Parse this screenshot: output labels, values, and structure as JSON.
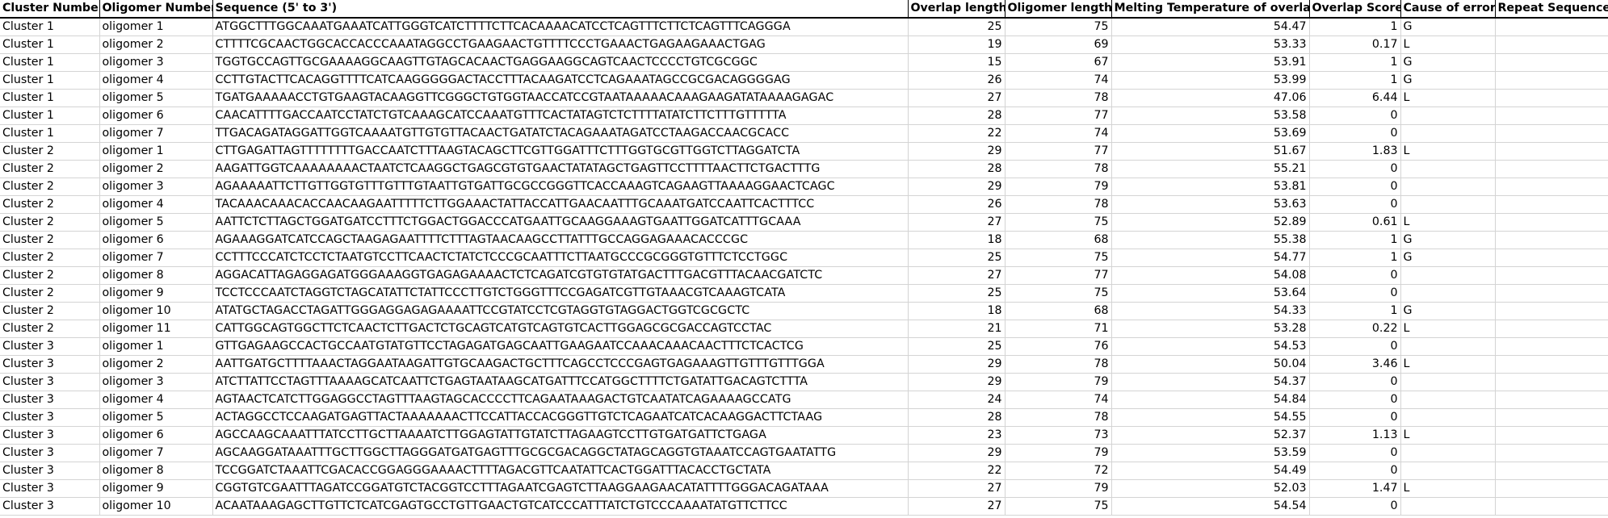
{
  "headers": [
    "Cluster Number",
    "Oligomer Number",
    "Sequence (5' to 3')",
    "Overlap length",
    "Oligomer length",
    "Melting Temperature of overlap",
    "Overlap Score",
    "Cause of errors",
    "Repeat Sequences"
  ],
  "rows": [
    [
      "Cluster 1",
      "oligomer 1",
      "ATGGCTTTGGCAAATGAAATCATTGGGTCATCTTTTCTTCACAAAACATCCTCAGTTTCTTCTCAGTTTCAGGGA",
      "25",
      "75",
      "54.47",
      "1",
      "G",
      ""
    ],
    [
      "Cluster 1",
      "oligomer 2",
      "CTTTTCGCAACTGGCACCACCCAAATAGGCCTGAAGAACTGTTTTCCCTGAAACTGAGAAGAAACTGAG",
      "19",
      "69",
      "53.33",
      "0.17",
      "L",
      ""
    ],
    [
      "Cluster 1",
      "oligomer 3",
      "TGGTGCCAGTTGCGAAAAGGCAAGTTGTAGCACAACTGAGGAAGGCAGTCAACTCCCCTGTCGCGGC",
      "15",
      "67",
      "53.91",
      "1",
      "G",
      ""
    ],
    [
      "Cluster 1",
      "oligomer 4",
      "CCTTGTACTTCACAGGTTTTCATCAAGGGGGACTACCTTTACAAGATCCTCAGAAATAGCCGCGACAGGGGAG",
      "26",
      "74",
      "53.99",
      "1",
      "G",
      ""
    ],
    [
      "Cluster 1",
      "oligomer 5",
      "TGATGAAAAACCTGTGAAGTACAAGGTTCGGGCTGTGGTAACCATCCGTAATAAAAACAAAGAAGATATAAAAGAGAC",
      "27",
      "78",
      "47.06",
      "6.44",
      "L",
      ""
    ],
    [
      "Cluster 1",
      "oligomer 6",
      "CAACATTTTGACCAATCCTATCTGTCAAAGCATCCAAATGTTTCACTATAGTCTCTTTTATATCTTCTTTGTTTTTA",
      "28",
      "77",
      "53.58",
      "0",
      "",
      ""
    ],
    [
      "Cluster 1",
      "oligomer 7",
      "TTGACAGATAGGATTGGTCAAAATGTTGTGTTACAACTGATATCTACAGAAATAGATCCTAAGACCAACGCACC",
      "22",
      "74",
      "53.69",
      "0",
      "",
      ""
    ],
    [
      "Cluster 2",
      "oligomer 1",
      "CTTGAGATTAGTTTTTTTTGACCAATCTTTAAGTACAGCTTCGTTGGATTTCTTTGGTGCGTTGGTCTTAGGATCTA",
      "29",
      "77",
      "51.67",
      "1.83",
      "L",
      ""
    ],
    [
      "Cluster 2",
      "oligomer 2",
      "AAGATTGGTCAAAAAAAACTAATCTCAAGGCTGAGCGTGTGAACTATATAGCTGAGTTCCTTTTAACTTCTGACTTTG",
      "28",
      "78",
      "55.21",
      "0",
      "",
      ""
    ],
    [
      "Cluster 2",
      "oligomer 3",
      "AGAAAAATTCTTGTTGGTGTTTGTTTGTAATTGTGATTGCGCCGGGTTCACCAAAGTCAGAAGTTAAAAGGAACTCAGC",
      "29",
      "79",
      "53.81",
      "0",
      "",
      ""
    ],
    [
      "Cluster 2",
      "oligomer 4",
      "TACAAACAAACACCAACAAGAATTTTTCTTGGAAACTATTACCATTGAACAATTTGCAAATGATCCAATTCACTTTCC",
      "26",
      "78",
      "53.63",
      "0",
      "",
      ""
    ],
    [
      "Cluster 2",
      "oligomer 5",
      "AATTCTCTTAGCTGGATGATCCTTTCTGGACTGGACCCATGAATTGCAAGGAAAGTGAATTGGATCATTTGCAAA",
      "27",
      "75",
      "52.89",
      "0.61",
      "L",
      ""
    ],
    [
      "Cluster 2",
      "oligomer 6",
      "AGAAAGGATCATCCAGCTAAGAGAATTTTCTTTAGTAACAAGCCTTATTTGCCAGGAGAAACACCCGC",
      "18",
      "68",
      "55.38",
      "1",
      "G",
      ""
    ],
    [
      "Cluster 2",
      "oligomer 7",
      "CCTTTCCCATCTCCTCTAATGTCCTTCAACTCTATCTCCCGCAATTTCTTAATGCCCGCGGGTGTTTCTCCTGGC",
      "25",
      "75",
      "54.77",
      "1",
      "G",
      ""
    ],
    [
      "Cluster 2",
      "oligomer 8",
      "AGGACATTAGAGGAGATGGGAAAGGTGAGAGAAAACTCTCAGATCGTGTGTATGACTTTGACGTTTACAACGATCTC",
      "27",
      "77",
      "54.08",
      "0",
      "",
      ""
    ],
    [
      "Cluster 2",
      "oligomer 9",
      "TCCTCCCAATCTAGGTCTAGCATATTCTATTCCCTTGTCTGGGTTTCCGAGATCGTTGTAAACGTCAAAGTCATA",
      "25",
      "75",
      "53.64",
      "0",
      "",
      ""
    ],
    [
      "Cluster 2",
      "oligomer 10",
      "ATATGCTAGACCTAGATTGGGAGGAGAGAAAATTCCGTATCCTCGTAGGTGTAGGACTGGTCGCGCTC",
      "18",
      "68",
      "54.33",
      "1",
      "G",
      ""
    ],
    [
      "Cluster 2",
      "oligomer 11",
      "CATTGGCAGTGGCTTCTCAACTCTTGACTCTGCAGTCATGTCAGTGTCACTTGGAGCGCGACCAGTCCTAC",
      "21",
      "71",
      "53.28",
      "0.22",
      "L",
      ""
    ],
    [
      "Cluster 3",
      "oligomer 1",
      "GTTGAGAAGCCACTGCCAATGTATGTTCCTAGAGATGAGCAATTGAAGAATCCAAACAAACAACTTTCTCACTCG",
      "25",
      "76",
      "54.53",
      "0",
      "",
      ""
    ],
    [
      "Cluster 3",
      "oligomer 2",
      "AATTGATGCTTTTAAACTAGGAATAAGATTGTGCAAGACTGCTTTCAGCCTCCCGAGTGAGAAAGTTGTTTGTTTGGA",
      "29",
      "78",
      "50.04",
      "3.46",
      "L",
      ""
    ],
    [
      "Cluster 3",
      "oligomer 3",
      "ATCTTATTCCTAGTTTAAAAGCATCAATTCTGAGTAATAAGCATGATTTCCATGGCTTTTCTGATATTGACAGTCTTTA",
      "29",
      "79",
      "54.37",
      "0",
      "",
      ""
    ],
    [
      "Cluster 3",
      "oligomer 4",
      "AGTAACTCATCTTGGAGGCCTAGTTTAAGTAGCACCCCTTCAGAATAAAGACTGTCAATATCAGAAAAGCCATG",
      "24",
      "74",
      "54.84",
      "0",
      "",
      ""
    ],
    [
      "Cluster 3",
      "oligomer 5",
      "ACTAGGCCTCCAAGATGAGTTACTAAAAAAACTTCCATTACCACGGGTTGTCTCAGAATCATCACAAGGACTTCTAAG",
      "28",
      "78",
      "54.55",
      "0",
      "",
      ""
    ],
    [
      "Cluster 3",
      "oligomer 6",
      "AGCCAAGCAAATTTATCCTTGCTTAAAATCTTGGAGTATTGTATCTTAGAAGTCCTTGTGATGATTCTGAGA",
      "23",
      "73",
      "52.37",
      "1.13",
      "L",
      ""
    ],
    [
      "Cluster 3",
      "oligomer 7",
      "AGCAAGGATAAATTTGCTTGGCTTAGGGATGATGAGTTTGCGCGACAGGCTATAGCAGGTGTAAATCCAGTGAATATTG",
      "29",
      "79",
      "53.59",
      "0",
      "",
      ""
    ],
    [
      "Cluster 3",
      "oligomer 8",
      "TCCGGATCTAAATTCGACACCGGAGGGAAAACTTTTAGACGTTCAATATTCACTGGATTTACACCTGCTATA",
      "22",
      "72",
      "54.49",
      "0",
      "",
      ""
    ],
    [
      "Cluster 3",
      "oligomer 9",
      "CGGTGTCGAATTTAGATCCGGATGTCTACGGTCCTTTAGAATCGAGTCTTAAGGAAGAACATATTTTGGGACAGATAAA",
      "27",
      "79",
      "52.03",
      "1.47",
      "L",
      ""
    ],
    [
      "Cluster 3",
      "oligomer 10",
      "ACAATAAAGAGCTTGTTCTCATCGAGTGCCTGTTGAACTGTCATCCCATTTATCTGTCCCAAAATATGTTCTTCC",
      "27",
      "75",
      "54.54",
      "0",
      "",
      ""
    ]
  ]
}
